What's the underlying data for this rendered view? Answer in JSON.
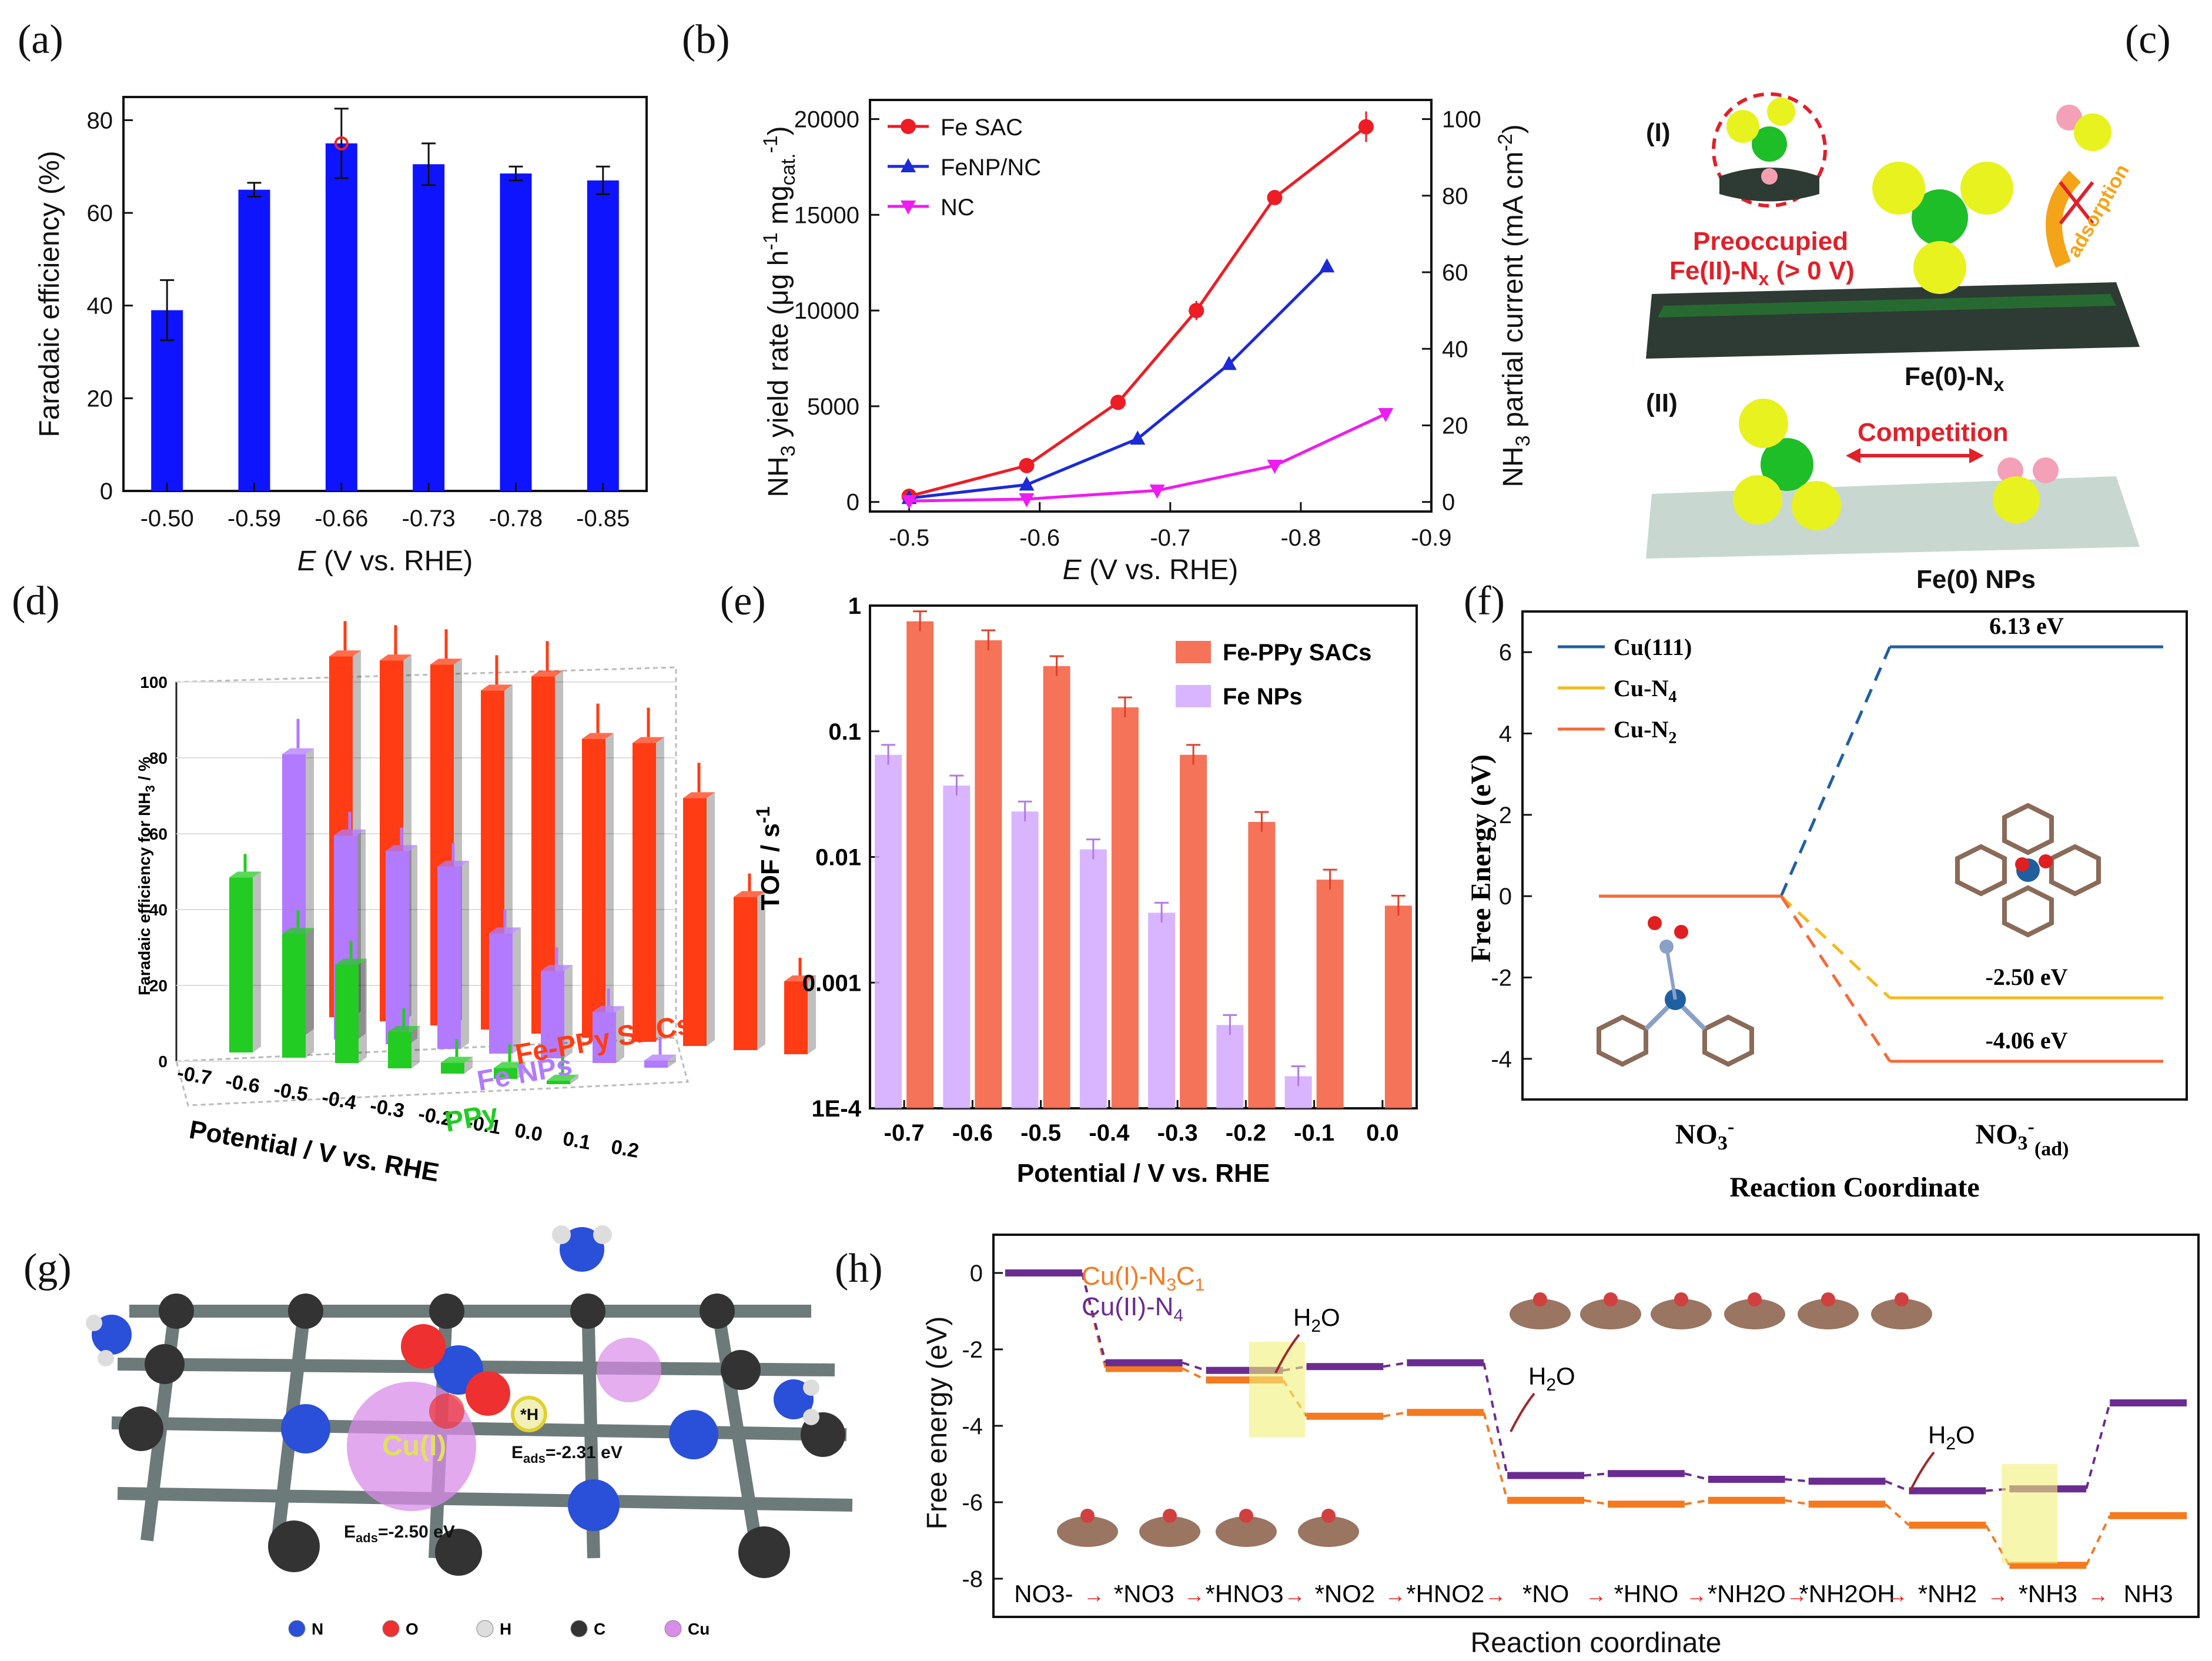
{
  "panels": {
    "a": {
      "letter": "(a)"
    },
    "b": {
      "letter": "(b)"
    },
    "c": {
      "letter": "(c)",
      "label_I": "(I)",
      "label_II": "(II)",
      "preoccupied": "Preoccupied",
      "feII": "Fe(II)-N",
      "feII_sub": "x",
      "feII_cond": " (> 0 V)",
      "adsorption": "adsorption",
      "fe0nx": "Fe(0)-N",
      "fe0nx_sub": "x",
      "competition": "Competition",
      "fe0nps": "Fe(0) NPs"
    },
    "d": {
      "letter": "(d)"
    },
    "e": {
      "letter": "(e)"
    },
    "f": {
      "letter": "(f)"
    },
    "g": {
      "letter": "(g)",
      "cu_label": "Cu(I)",
      "h_label": "*H",
      "eads1": "E",
      "eads1_sub": "ads",
      "eads1_val": "=-2.31 eV",
      "eads2": "E",
      "eads2_sub": "ads",
      "eads2_val": "=-2.50 eV",
      "legend": [
        "N",
        "O",
        "H",
        "C",
        "Cu"
      ]
    },
    "h": {
      "letter": "(h)"
    }
  },
  "chart_data": [
    {
      "id": "a",
      "type": "bar",
      "categories": [
        "-0.50",
        "-0.59",
        "-0.66",
        "-0.73",
        "-0.78",
        "-0.85"
      ],
      "values": [
        39,
        65,
        75,
        70.5,
        68.5,
        67
      ],
      "errors": [
        6.5,
        1.5,
        7.5,
        4.5,
        1.5,
        3
      ],
      "ylabel": "Faradaic efficiency (%)",
      "xlabel_italic": "E",
      "xlabel": " (V vs. RHE)",
      "ylim": [
        0,
        85
      ],
      "yticks": [
        "0",
        "20",
        "40",
        "60",
        "80"
      ],
      "color": "#0f14ff"
    },
    {
      "id": "b",
      "type": "line",
      "ylabel": "NH",
      "ylabel_sub": "3",
      "ylabel_rest": " yield rate (μg h",
      "ylabel_sup": "-1",
      "ylabel_rest2": " mg",
      "ylabel_sub2": "cat.",
      "ylabel_sup2": "-1",
      "ylabel_end": ")",
      "y2label": "NH",
      "y2label_sub": "3",
      "y2label_rest": " partial current (mA cm",
      "y2label_sup": "-2",
      "y2label_end": ")",
      "xlabel_italic": "E",
      "xlabel": " (V vs. RHE)",
      "xlim": [
        -0.47,
        -0.9
      ],
      "ylim": [
        -500,
        21000
      ],
      "y2lim": [
        -2.5,
        105
      ],
      "xticks": [
        "-0.5",
        "-0.6",
        "-0.7",
        "-0.8",
        "-0.9"
      ],
      "yticks": [
        "0",
        "5000",
        "10000",
        "15000",
        "20000"
      ],
      "y2ticks": [
        "0",
        "20",
        "40",
        "60",
        "80",
        "100"
      ],
      "series": [
        {
          "name": "Fe SAC",
          "color": "#ee1c25",
          "marker": "circle",
          "x": [
            -0.5,
            -0.59,
            -0.66,
            -0.72,
            -0.78,
            -0.85
          ],
          "y": [
            300,
            1900,
            5200,
            10000,
            15900,
            19600
          ],
          "err": [
            0,
            0,
            0,
            500,
            0,
            800
          ]
        },
        {
          "name": "FeNP/NC",
          "color": "#1c2ad8",
          "marker": "triangle-up",
          "x": [
            -0.5,
            -0.59,
            -0.675,
            -0.745,
            -0.82
          ],
          "y": [
            200,
            900,
            3300,
            7200,
            12300
          ],
          "err": [
            0,
            0,
            0,
            0,
            0
          ]
        },
        {
          "name": "NC",
          "color": "#ee1cf0",
          "marker": "triangle-down",
          "x": [
            -0.5,
            -0.59,
            -0.69,
            -0.78,
            -0.865
          ],
          "y": [
            50,
            150,
            600,
            1900,
            4600
          ],
          "err": [
            0,
            0,
            0,
            0,
            0
          ]
        }
      ]
    },
    {
      "id": "d",
      "type": "bar",
      "projection": "3d",
      "zlabel": "Faradaic efficiency for NH",
      "zlabel_sub": "3",
      "zlabel_end": " / %",
      "xlabel": "Potential / V vs. RHE",
      "zticks": [
        "0",
        "20",
        "40",
        "60",
        "80",
        "100"
      ],
      "potentials": [
        "-0.7",
        "-0.6",
        "-0.5",
        "-0.4",
        "-0.3",
        "-0.2",
        "-0.1",
        "0.0",
        "0.1",
        "0.2"
      ],
      "series": [
        {
          "name": "PPy",
          "color": "#22cc22",
          "values": [
            48,
            34,
            27,
            10,
            3,
            3,
            1
          ]
        },
        {
          "name": "Fe NPs",
          "color": "#b27aff",
          "values": [
            77,
            56,
            53,
            50,
            33,
            24,
            14,
            2
          ]
        },
        {
          "name": "Fe-PPy SACs",
          "color": "#ff3c14",
          "values": [
            99,
            99,
            99,
            93,
            98,
            82,
            82,
            68,
            42,
            20
          ]
        }
      ]
    },
    {
      "id": "e",
      "type": "bar",
      "yscale": "log",
      "ylabel": "TOF / s",
      "ylabel_sup": "-1",
      "xlabel": "Potential / V vs. RHE",
      "categories": [
        "-0.7",
        "-0.6",
        "-0.5",
        "-0.4",
        "-0.3",
        "-0.2",
        "-0.1",
        "0.0"
      ],
      "yticks": [
        "1E-4",
        "0.001",
        "0.01",
        "0.1",
        "1"
      ],
      "series": [
        {
          "name": "Fe-PPy SACs",
          "color": "#f25a3c",
          "values": [
            0.75,
            0.53,
            0.33,
            0.155,
            0.065,
            0.019,
            0.0066,
            0.0041
          ]
        },
        {
          "name": "Fe NPs",
          "color": "#d2a8ff",
          "values": [
            0.065,
            0.037,
            0.023,
            0.0115,
            0.0036,
            0.00046,
            0.00018,
            null
          ]
        }
      ]
    },
    {
      "id": "f",
      "type": "line",
      "subtype": "energy-diagram",
      "ylabel": "Free Energy (eV)",
      "xlabel": "Reaction Coordinate",
      "ylim": [
        -5,
        7
      ],
      "yticks": [
        "-4",
        "-2",
        "0",
        "2",
        "4",
        "6"
      ],
      "categories": [
        "NO3-",
        "NO3-(ad)"
      ],
      "cat_label_1": "NO",
      "cat_sub_1": "3",
      "cat_sup_1": "-",
      "cat_label_2": "NO",
      "cat_sub_2": "3",
      "cat_sup_2": "-",
      "cat_sub2_2": "(ad)",
      "series": [
        {
          "name": "Cu(111)",
          "color": "#1f5fa0",
          "values": [
            0,
            6.13
          ],
          "label": "6.13 eV"
        },
        {
          "name": "Cu-N4",
          "name_main": "Cu-N",
          "name_sub": "4",
          "color": "#f6b81c",
          "values": [
            0,
            -2.5
          ],
          "label": "-2.50 eV"
        },
        {
          "name": "Cu-N2",
          "name_main": "Cu-N",
          "name_sub": "2",
          "color": "#f46a3a",
          "values": [
            0,
            -4.06
          ],
          "label": "-4.06 eV"
        }
      ]
    },
    {
      "id": "h",
      "type": "line",
      "subtype": "energy-diagram",
      "ylabel": "Free energy (eV)",
      "xlabel": "Reaction coordinate",
      "ylim": [
        -9,
        1
      ],
      "yticks": [
        "0",
        "-2",
        "-4",
        "-6",
        "-8"
      ],
      "categories": [
        "NO3-",
        "*NO3",
        "*HNO3",
        "*NO2",
        "*HNO2",
        "*NO",
        "*HNO",
        "*NH2O",
        "*NH2OH",
        "*NH2",
        "*NH3",
        "NH3"
      ],
      "water_label": "H",
      "water_sub": "2",
      "water_end": "O",
      "series": [
        {
          "name": "Cu(I)-N3C1",
          "name_main": "Cu(I)-N",
          "name_sub": "3",
          "name_mid": "C",
          "name_sub2": "1",
          "color": "#f47a20",
          "values": [
            0,
            -2.5,
            -2.8,
            -3.75,
            -3.65,
            -5.95,
            -6.05,
            -5.95,
            -6.05,
            -6.6,
            -7.65,
            -6.35
          ]
        },
        {
          "name": "Cu(II)-N4",
          "name_main": "Cu(II)-N",
          "name_sub": "4",
          "color": "#6b2c91",
          "values": [
            0,
            -2.35,
            -2.55,
            -2.45,
            -2.35,
            -5.3,
            -5.25,
            -5.4,
            -5.45,
            -5.7,
            -5.65,
            -3.4
          ]
        }
      ]
    }
  ]
}
